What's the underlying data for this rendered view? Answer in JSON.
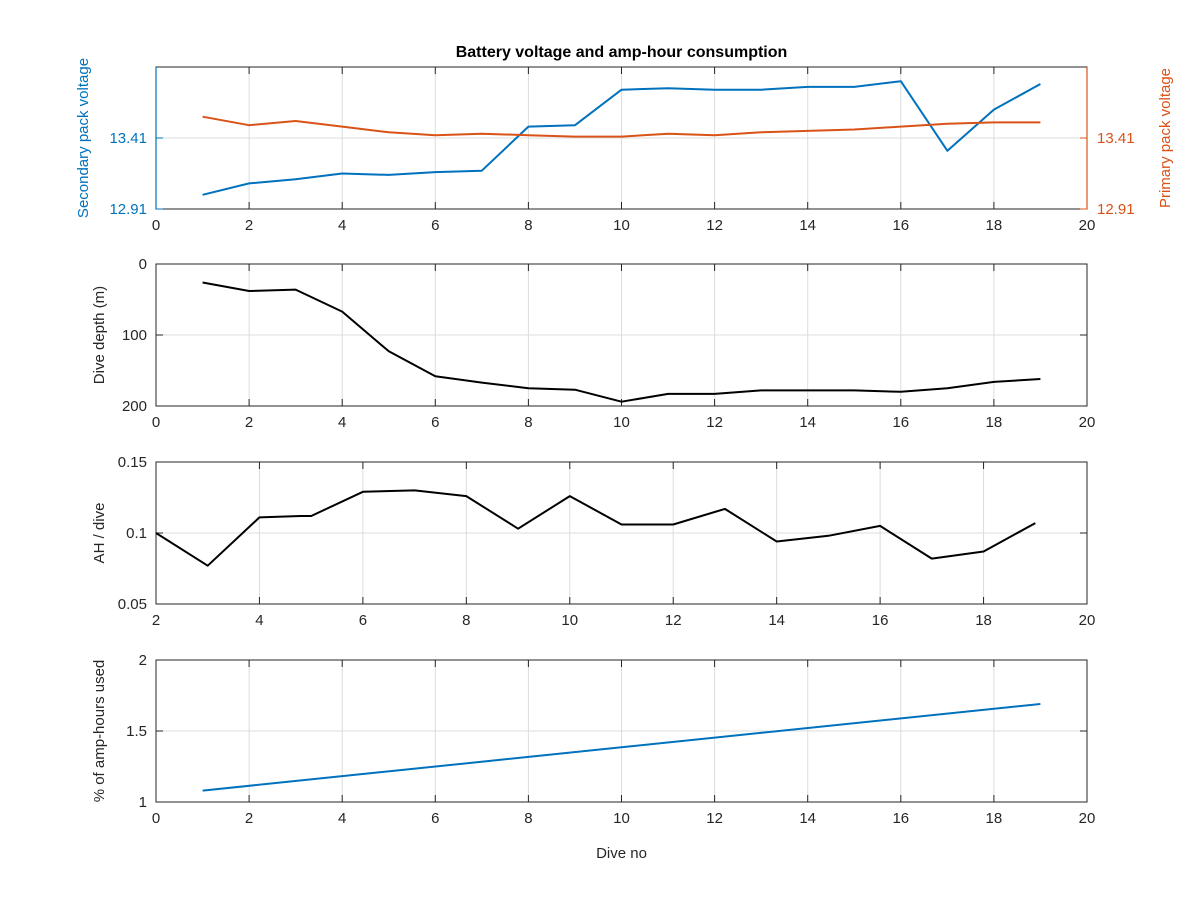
{
  "figure": {
    "title": "Battery voltage and amp-hour consumption"
  },
  "colors": {
    "secondary": "#0072BD",
    "primary": "#D95319",
    "black": "#000000",
    "axis": "#262626",
    "grid": "#dcdcdc"
  },
  "chart_data": [
    {
      "type": "line",
      "title": "Battery voltage and amp-hour consumption",
      "xlabel": "",
      "ylabel": "Secondary pack voltage",
      "ylabel_right": "Primary pack voltage",
      "xlim": [
        0,
        20
      ],
      "ylim": [
        12.91,
        13.91
      ],
      "ylim_right": [
        12.91,
        13.91
      ],
      "x_ticks": [
        "0",
        "2",
        "4",
        "6",
        "8",
        "10",
        "12",
        "14",
        "16",
        "18",
        "20"
      ],
      "y_ticks": [
        "12.91",
        "13.41"
      ],
      "y_ticks_right": [
        "12.91",
        "13.41"
      ],
      "grid": true,
      "series": [
        {
          "name": "Secondary pack voltage",
          "axis": "left",
          "color": "#0072BD",
          "x": [
            1,
            2,
            3,
            4,
            5,
            6,
            7,
            8,
            9,
            10,
            11,
            12,
            13,
            14,
            15,
            16,
            17,
            18,
            19
          ],
          "y": [
            13.01,
            13.09,
            13.12,
            13.16,
            13.15,
            13.17,
            13.18,
            13.49,
            13.5,
            13.75,
            13.76,
            13.75,
            13.75,
            13.77,
            13.77,
            13.81,
            13.32,
            13.61,
            13.79
          ]
        },
        {
          "name": "Primary pack voltage",
          "axis": "right",
          "color": "#D95319",
          "x": [
            1,
            2,
            3,
            4,
            5,
            6,
            7,
            8,
            9,
            10,
            11,
            12,
            13,
            14,
            15,
            16,
            17,
            18,
            19
          ],
          "y": [
            13.56,
            13.5,
            13.53,
            13.49,
            13.45,
            13.43,
            13.44,
            13.43,
            13.42,
            13.42,
            13.44,
            13.43,
            13.45,
            13.46,
            13.47,
            13.49,
            13.51,
            13.52,
            13.52
          ]
        }
      ]
    },
    {
      "type": "line",
      "xlabel": "",
      "ylabel": "Dive depth (m)",
      "xlim": [
        0,
        20
      ],
      "ylim": [
        0,
        200
      ],
      "y_reversed": true,
      "x_ticks": [
        "0",
        "2",
        "4",
        "6",
        "8",
        "10",
        "12",
        "14",
        "16",
        "18",
        "20"
      ],
      "y_ticks": [
        "0",
        "100",
        "200"
      ],
      "grid": true,
      "series": [
        {
          "color": "#000000",
          "x": [
            1,
            2,
            3,
            4,
            5,
            6,
            7,
            8,
            9,
            10,
            11,
            12,
            13,
            14,
            15,
            16,
            17,
            18,
            19
          ],
          "y": [
            26,
            38,
            36,
            67,
            123,
            158,
            167,
            175,
            177,
            194,
            183,
            183,
            178,
            178,
            178,
            180,
            175,
            166,
            162
          ]
        }
      ]
    },
    {
      "type": "line",
      "xlabel": "",
      "ylabel": "AH / dive",
      "xlim": [
        2,
        20
      ],
      "ylim": [
        0.05,
        0.15
      ],
      "x_ticks": [
        "2",
        "4",
        "6",
        "8",
        "10",
        "12",
        "14",
        "16",
        "18",
        "20"
      ],
      "y_ticks": [
        "0.05",
        "0.1",
        "0.15"
      ],
      "grid": true,
      "series": [
        {
          "color": "#000000",
          "x": [
            2,
            3,
            4,
            4.8,
            5,
            6,
            7,
            8,
            9,
            10,
            11,
            12,
            13,
            14,
            15,
            16,
            17,
            18,
            19
          ],
          "y": [
            0.1,
            0.077,
            0.111,
            0.112,
            0.112,
            0.129,
            0.13,
            0.126,
            0.103,
            0.126,
            0.106,
            0.106,
            0.117,
            0.094,
            0.098,
            0.105,
            0.082,
            0.087,
            0.107
          ]
        }
      ]
    },
    {
      "type": "line",
      "xlabel": "Dive no",
      "ylabel": "% of amp-hours used",
      "xlim": [
        0,
        20
      ],
      "ylim": [
        1,
        2
      ],
      "x_ticks": [
        "0",
        "2",
        "4",
        "6",
        "8",
        "10",
        "12",
        "14",
        "16",
        "18",
        "20"
      ],
      "y_ticks": [
        "1",
        "1.5",
        "2"
      ],
      "grid": true,
      "series": [
        {
          "color": "#0072BD",
          "x": [
            1,
            19
          ],
          "y": [
            1.08,
            1.69
          ]
        }
      ]
    }
  ]
}
